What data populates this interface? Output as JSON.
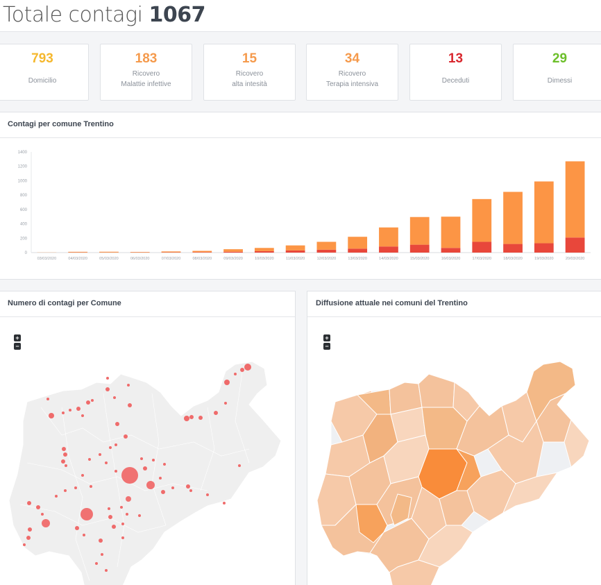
{
  "header": {
    "title_prefix": "Totale contagi",
    "total": "1067"
  },
  "stats": [
    {
      "value": "793",
      "line1": "",
      "line2": "Domicilio",
      "color": "#f5b82e"
    },
    {
      "value": "183",
      "line1": "Ricovero",
      "line2": "Malattie infettive",
      "color": "#f59a4c"
    },
    {
      "value": "15",
      "line1": "Ricovero",
      "line2": "alta intesità",
      "color": "#f59a4c"
    },
    {
      "value": "34",
      "line1": "Ricovero",
      "line2": "Terapia intensiva",
      "color": "#f59a4c"
    },
    {
      "value": "13",
      "line1": "",
      "line2": "Deceduti",
      "color": "#d9272e"
    },
    {
      "value": "29",
      "line1": "",
      "line2": "Dimessi",
      "color": "#6cbf2a"
    }
  ],
  "panels": {
    "chart_title": "Contagi per comune Trentino",
    "bubble_map_title": "Numero di contagi per Comune",
    "choropleth_title": "Diffusione attuale nei comuni del Trentino",
    "zoom_in": "+",
    "zoom_out": "−"
  },
  "chart_data": {
    "type": "bar",
    "stacked": true,
    "categories": [
      "03/03/2020",
      "04/03/2020",
      "05/03/2020",
      "06/03/2020",
      "07/03/2020",
      "08/03/2020",
      "09/03/2020",
      "10/03/2020",
      "11/03/2020",
      "12/03/2020",
      "13/03/2020",
      "14/03/2020",
      "15/03/2020",
      "16/03/2020",
      "17/03/2020",
      "18/03/2020",
      "19/03/2020",
      "20/03/2020"
    ],
    "series": [
      {
        "values": [
          0,
          3,
          2,
          3,
          4,
          6,
          12,
          20,
          30,
          40,
          55,
          85,
          110,
          65,
          150,
          120,
          130,
          210
        ],
        "color": "#e8473b"
      },
      {
        "values": [
          2,
          8,
          10,
          6,
          12,
          18,
          35,
          45,
          70,
          110,
          165,
          265,
          385,
          435,
          595,
          725,
          860,
          1060
        ],
        "color": "#fc9545"
      }
    ],
    "ylim": [
      0,
      1400
    ],
    "yticks": [
      0,
      200,
      400,
      600,
      800,
      1000,
      1200,
      1400
    ],
    "grid": false,
    "xlabel": "",
    "ylabel": ""
  }
}
